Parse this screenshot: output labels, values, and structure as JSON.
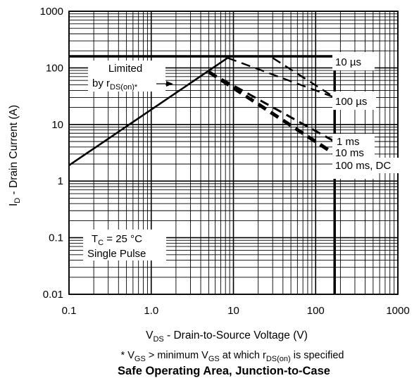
{
  "chart_data": {
    "type": "line",
    "x_scale": "log",
    "y_scale": "log",
    "xlim": [
      0.1,
      1000
    ],
    "ylim": [
      0.01,
      1000
    ],
    "grid": true,
    "x_tick_labels": [
      "0.1",
      "1.0",
      "10",
      "100",
      "1000"
    ],
    "y_tick_labels": [
      "0.01",
      "0.1",
      "1",
      "10",
      "100",
      "1000"
    ],
    "xlabel": {
      "main": "V",
      "sub": "DS",
      "rest": " - Drain-to-Source Voltage (V)"
    },
    "ylabel": {
      "main": "I",
      "sub": "D",
      "rest": " - Drain Current (A)"
    },
    "series": [
      {
        "name": "10 µs",
        "points": [
          [
            0.1,
            160
          ],
          [
            170,
            160
          ],
          [
            170,
            0.01
          ]
        ]
      },
      {
        "name": "100 µs",
        "points": [
          [
            8.5,
            150
          ],
          [
            170,
            30
          ]
        ]
      },
      {
        "name": "1 ms",
        "points": [
          [
            5,
            85
          ],
          [
            170,
            5
          ]
        ]
      },
      {
        "name": "10 ms",
        "points": [
          [
            5,
            85
          ],
          [
            170,
            3
          ]
        ]
      },
      {
        "name": "100 ms, DC",
        "points": [
          [
            0.1,
            1.9
          ],
          [
            8.5,
            150
          ]
        ]
      },
      {
        "name": "1 ms-seg",
        "points": [
          [
            30,
            150
          ],
          [
            170,
            30
          ]
        ]
      }
    ],
    "annotations": {
      "limited_line1": "Limited",
      "limited_line2_main": "by r",
      "limited_line2_sub": "DS(on)*",
      "tc_main": "T",
      "tc_sub": "C",
      "tc_rest": " = 25 °C",
      "single_pulse": "Single Pulse",
      "label_10us": "10 µs",
      "label_100us": "100 µs",
      "label_1ms": "1 ms",
      "label_10ms": "10 ms",
      "label_100ms_dc": "100 ms, DC"
    },
    "footnote": {
      "star": "* V",
      "sub1": "GS",
      "mid": " > minimum V",
      "sub2": "GS",
      "mid2": " at which r",
      "sub3": "DS(on)",
      "end": " is specified"
    },
    "caption": "Safe Operating Area, Junction-to-Case"
  }
}
